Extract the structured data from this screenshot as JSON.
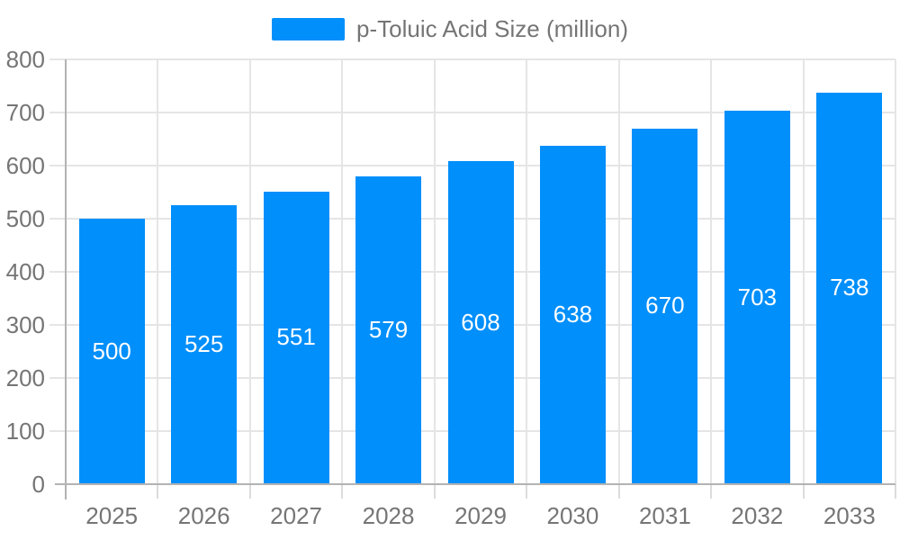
{
  "legend": {
    "label": "p-Toluic Acid Size (million)",
    "swatch_color": "#008FFB"
  },
  "chart_data": {
    "type": "bar",
    "title": "p-Toluic Acid Size (million)",
    "series_name": "p-Toluic Acid Size (million)",
    "categories": [
      "2025",
      "2026",
      "2027",
      "2028",
      "2029",
      "2030",
      "2031",
      "2032",
      "2033"
    ],
    "values": [
      500,
      525,
      551,
      579,
      608,
      638,
      670,
      703,
      738
    ],
    "xlabel": "",
    "ylabel": "",
    "ylim": [
      0,
      800
    ],
    "ytick_step": 100,
    "yticks": [
      0,
      100,
      200,
      300,
      400,
      500,
      600,
      700,
      800
    ],
    "grid": true,
    "legend_position": "top-center",
    "data_labels": "inside-center",
    "colors": {
      "bar": "#008FFB",
      "bar_label": "#FFFFFF",
      "axis_text": "#757575",
      "gridline": "#E5E5E5",
      "axis_line": "#B3B3B3",
      "tick": "#DCDCDC"
    }
  }
}
